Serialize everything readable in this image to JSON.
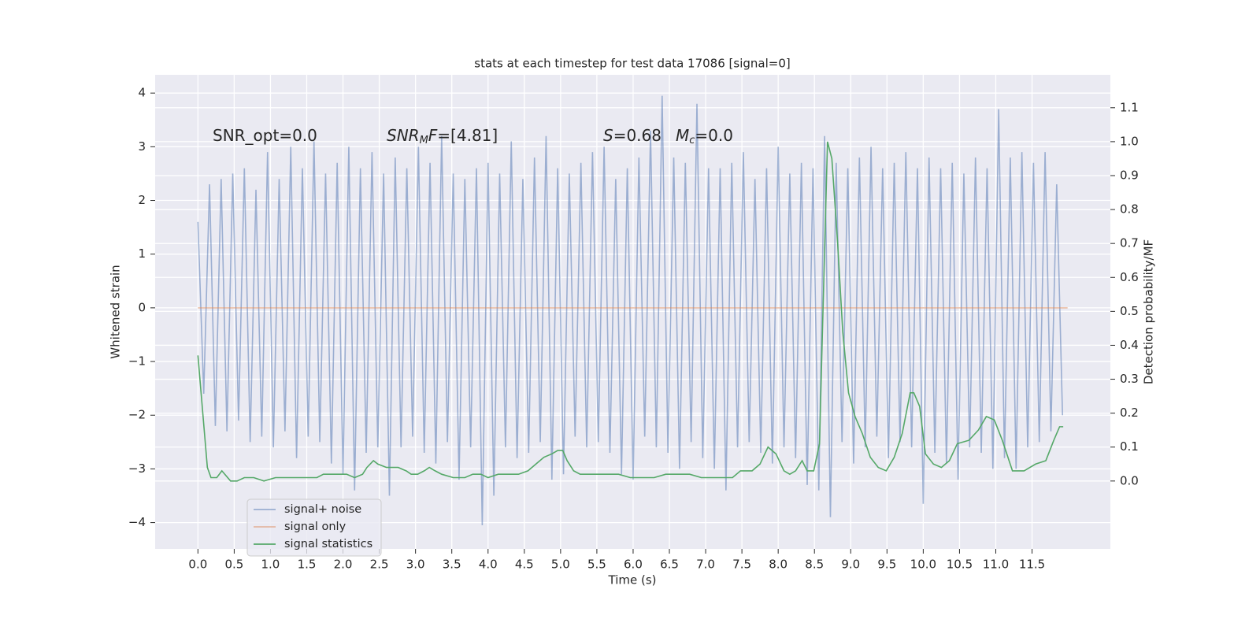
{
  "chart_data": {
    "type": "line",
    "title": "stats at each timestep for test data 17086 [signal=0]",
    "xlabel": "Time (s)",
    "ylabel": "Whitened strain",
    "y2label": "Detection probability/MF",
    "xlim": [
      -0.59,
      12.58
    ],
    "ylim": [
      -4.49,
      4.34
    ],
    "y2lim": [
      -0.2,
      1.197
    ],
    "xticks": [
      {
        "value": 0,
        "label": "0.0"
      },
      0.5,
      {
        "value": 1,
        "label": "1.0"
      },
      1.5,
      {
        "value": 2,
        "label": "2.0"
      },
      2.5,
      {
        "value": 3,
        "label": "3.0"
      },
      3.5,
      {
        "value": 4,
        "label": "4.0"
      },
      4.5,
      {
        "value": 5,
        "label": "5.0"
      },
      5.5,
      {
        "value": 6,
        "label": "6.0"
      },
      6.5,
      {
        "value": 7,
        "label": "7.0"
      },
      7.5,
      {
        "value": 8,
        "label": "8.0"
      },
      8.5,
      {
        "value": 9,
        "label": "9.0"
      },
      9.5,
      {
        "value": 10,
        "label": "10.0"
      },
      10.5,
      {
        "value": 11,
        "label": "11.0"
      },
      11.5
    ],
    "yticks": [
      {
        "value": -4,
        "label": "−4"
      },
      {
        "value": -3,
        "label": "−3"
      },
      {
        "value": -2,
        "label": "−2"
      },
      {
        "value": -1,
        "label": "−1"
      },
      0,
      1,
      2,
      3,
      4
    ],
    "y2ticks": [
      {
        "value": 0,
        "label": "0.0"
      },
      0.1,
      0.2,
      0.3,
      0.4,
      0.5,
      0.6,
      0.7,
      0.8,
      0.9,
      {
        "value": 1,
        "label": "1.0"
      },
      1.1
    ],
    "grid": true,
    "legend": "lower left",
    "series": [
      {
        "name": "signal+ noise",
        "color": "#4c72b0",
        "alpha": 0.5,
        "x": [
          0,
          0.08,
          0.16,
          0.24,
          0.32,
          0.4,
          0.48,
          0.56,
          0.64,
          0.72,
          0.8,
          0.88,
          0.96,
          1.04,
          1.12,
          1.2,
          1.28,
          1.36,
          1.44,
          1.52,
          1.6,
          1.68,
          1.76,
          1.84,
          1.92,
          2,
          2.08,
          2.16,
          2.24,
          2.32,
          2.4,
          2.48,
          2.56,
          2.64,
          2.72,
          2.8,
          2.88,
          2.96,
          3.04,
          3.12,
          3.2,
          3.28,
          3.36,
          3.44,
          3.52,
          3.6,
          3.68,
          3.76,
          3.84,
          3.92,
          4,
          4.08,
          4.16,
          4.24,
          4.32,
          4.4,
          4.48,
          4.56,
          4.64,
          4.72,
          4.8,
          4.88,
          4.96,
          5.04,
          5.12,
          5.2,
          5.28,
          5.36,
          5.44,
          5.52,
          5.6,
          5.68,
          5.76,
          5.84,
          5.92,
          6,
          6.08,
          6.16,
          6.24,
          6.32,
          6.4,
          6.48,
          6.56,
          6.64,
          6.72,
          6.8,
          6.88,
          6.96,
          7.04,
          7.12,
          7.2,
          7.28,
          7.36,
          7.44,
          7.52,
          7.6,
          7.68,
          7.76,
          7.84,
          7.92,
          8,
          8.08,
          8.16,
          8.24,
          8.32,
          8.4,
          8.48,
          8.56,
          8.64,
          8.72,
          8.8,
          8.88,
          8.96,
          9.04,
          9.12,
          9.2,
          9.28,
          9.36,
          9.44,
          9.52,
          9.6,
          9.68,
          9.76,
          9.84,
          9.92,
          10,
          10.08,
          10.16,
          10.24,
          10.32,
          10.4,
          10.48,
          10.56,
          10.64,
          10.72,
          10.8,
          10.88,
          10.96,
          11.04,
          11.12,
          11.2,
          11.28,
          11.36,
          11.44,
          11.52,
          11.6,
          11.68,
          11.76,
          11.84,
          11.92
        ],
        "values": [
          1.6,
          -1.6,
          2.3,
          -2.2,
          2.4,
          -2.3,
          2.5,
          -2.1,
          2.6,
          -2.5,
          2.2,
          -2.4,
          2.9,
          -2.6,
          2.4,
          -2.3,
          3.0,
          -2.8,
          2.6,
          -2.4,
          3.1,
          -2.5,
          2.5,
          -2.9,
          2.7,
          -3.1,
          3.0,
          -3.4,
          2.6,
          -2.7,
          2.9,
          -2.6,
          2.5,
          -3.5,
          2.8,
          -2.6,
          2.6,
          -2.4,
          3.0,
          -2.7,
          2.7,
          -2.9,
          3.2,
          -2.5,
          2.5,
          -3.2,
          2.4,
          -2.6,
          2.6,
          -4.05,
          2.7,
          -3.5,
          2.5,
          -2.6,
          3.1,
          -2.8,
          2.4,
          -2.7,
          2.8,
          -2.5,
          3.2,
          -3.2,
          2.6,
          -3.1,
          2.5,
          -2.4,
          2.7,
          -2.6,
          2.9,
          -2.5,
          3.0,
          -2.7,
          2.4,
          -3.1,
          2.6,
          -3.2,
          2.8,
          -2.4,
          3.3,
          -2.6,
          3.95,
          -2.7,
          2.8,
          -3.0,
          2.7,
          -2.5,
          3.8,
          -2.8,
          2.6,
          -3.0,
          2.6,
          -3.4,
          2.7,
          -2.6,
          2.9,
          -2.5,
          2.4,
          -2.7,
          2.6,
          -2.9,
          3.0,
          -2.6,
          2.5,
          -2.8,
          2.7,
          -3.3,
          2.6,
          -3.4,
          3.2,
          -3.9,
          2.7,
          -2.5,
          2.6,
          -2.9,
          2.8,
          -2.6,
          3.0,
          -2.4,
          2.6,
          -2.8,
          2.7,
          -2.5,
          2.9,
          -2.6,
          2.6,
          -3.65,
          2.8,
          -2.7,
          2.6,
          -2.9,
          2.7,
          -3.2,
          2.5,
          -2.6,
          2.8,
          -2.7,
          2.6,
          -3.0,
          3.7,
          -2.8,
          2.8,
          -3.0,
          2.9,
          -2.6,
          2.7,
          -2.5,
          2.9,
          -2.3,
          2.3,
          -2.0
        ]
      },
      {
        "name": "signal only",
        "color": "#dd8452",
        "alpha": 0.5,
        "x": [
          0,
          11.99
        ],
        "values": [
          0,
          0
        ]
      },
      {
        "name": "signal statistics",
        "color": "#55a868",
        "alpha": 1,
        "axis": "y2",
        "x": [
          0,
          0.13,
          0.18,
          0.26,
          0.33,
          0.45,
          0.54,
          0.64,
          0.77,
          0.91,
          1.07,
          1.24,
          1.32,
          1.51,
          1.64,
          1.73,
          1.83,
          1.94,
          2.05,
          2.16,
          2.27,
          2.33,
          2.42,
          2.48,
          2.6,
          2.76,
          2.87,
          2.94,
          3.03,
          3.12,
          3.19,
          3.27,
          3.36,
          3.52,
          3.68,
          3.79,
          3.9,
          4.0,
          4.14,
          4.28,
          4.42,
          4.55,
          4.66,
          4.77,
          4.88,
          4.96,
          5.03,
          5.09,
          5.18,
          5.27,
          5.36,
          5.47,
          5.63,
          5.8,
          5.96,
          6.12,
          6.29,
          6.45,
          6.61,
          6.78,
          6.94,
          7.05,
          7.21,
          7.37,
          7.48,
          7.64,
          7.75,
          7.86,
          7.97,
          8.08,
          8.16,
          8.24,
          8.33,
          8.4,
          8.49,
          8.57,
          8.61,
          8.68,
          8.74,
          8.82,
          8.89,
          8.97,
          9.06,
          9.16,
          9.27,
          9.38,
          9.49,
          9.6,
          9.71,
          9.82,
          9.87,
          9.95,
          10.03,
          10.14,
          10.25,
          10.36,
          10.47,
          10.63,
          10.76,
          10.87,
          10.98,
          11.09,
          11.23,
          11.39,
          11.55,
          11.69,
          11.8,
          11.88,
          11.93
        ],
        "values": [
          0.37,
          0.04,
          0.01,
          0.01,
          0.03,
          0.0,
          0.0,
          0.01,
          0.01,
          0.0,
          0.01,
          0.01,
          0.01,
          0.01,
          0.01,
          0.02,
          0.02,
          0.02,
          0.02,
          0.01,
          0.02,
          0.04,
          0.06,
          0.05,
          0.04,
          0.04,
          0.03,
          0.02,
          0.02,
          0.03,
          0.04,
          0.03,
          0.02,
          0.01,
          0.01,
          0.02,
          0.02,
          0.01,
          0.02,
          0.02,
          0.02,
          0.03,
          0.05,
          0.07,
          0.08,
          0.09,
          0.09,
          0.06,
          0.03,
          0.02,
          0.02,
          0.02,
          0.02,
          0.02,
          0.01,
          0.01,
          0.01,
          0.02,
          0.02,
          0.02,
          0.01,
          0.01,
          0.01,
          0.01,
          0.03,
          0.03,
          0.05,
          0.1,
          0.08,
          0.03,
          0.02,
          0.03,
          0.06,
          0.03,
          0.03,
          0.11,
          0.44,
          1.0,
          0.95,
          0.7,
          0.44,
          0.26,
          0.19,
          0.14,
          0.07,
          0.04,
          0.03,
          0.07,
          0.14,
          0.26,
          0.26,
          0.22,
          0.08,
          0.05,
          0.04,
          0.06,
          0.11,
          0.12,
          0.15,
          0.19,
          0.18,
          0.12,
          0.03,
          0.03,
          0.05,
          0.06,
          0.12,
          0.16,
          0.16
        ]
      }
    ],
    "annotations": [
      {
        "parts": [
          {
            "text": "SNR_opt=0.0",
            "italic": false,
            "sub": false
          }
        ]
      },
      {
        "parts": [
          {
            "text": "SNR",
            "italic": true,
            "sub": false
          },
          {
            "text": "M",
            "italic": true,
            "sub": true
          },
          {
            "text": "F",
            "italic": true,
            "sub": false
          },
          {
            "text": "=[4.81]",
            "italic": false,
            "sub": false
          }
        ]
      },
      {
        "parts": [
          {
            "text": "S",
            "italic": true,
            "sub": false
          },
          {
            "text": "=0.68",
            "italic": false,
            "sub": false
          }
        ]
      },
      {
        "parts": [
          {
            "text": "M",
            "italic": true,
            "sub": false
          },
          {
            "text": "c",
            "italic": true,
            "sub": true
          },
          {
            "text": "=0.0",
            "italic": false,
            "sub": false
          }
        ]
      }
    ]
  }
}
